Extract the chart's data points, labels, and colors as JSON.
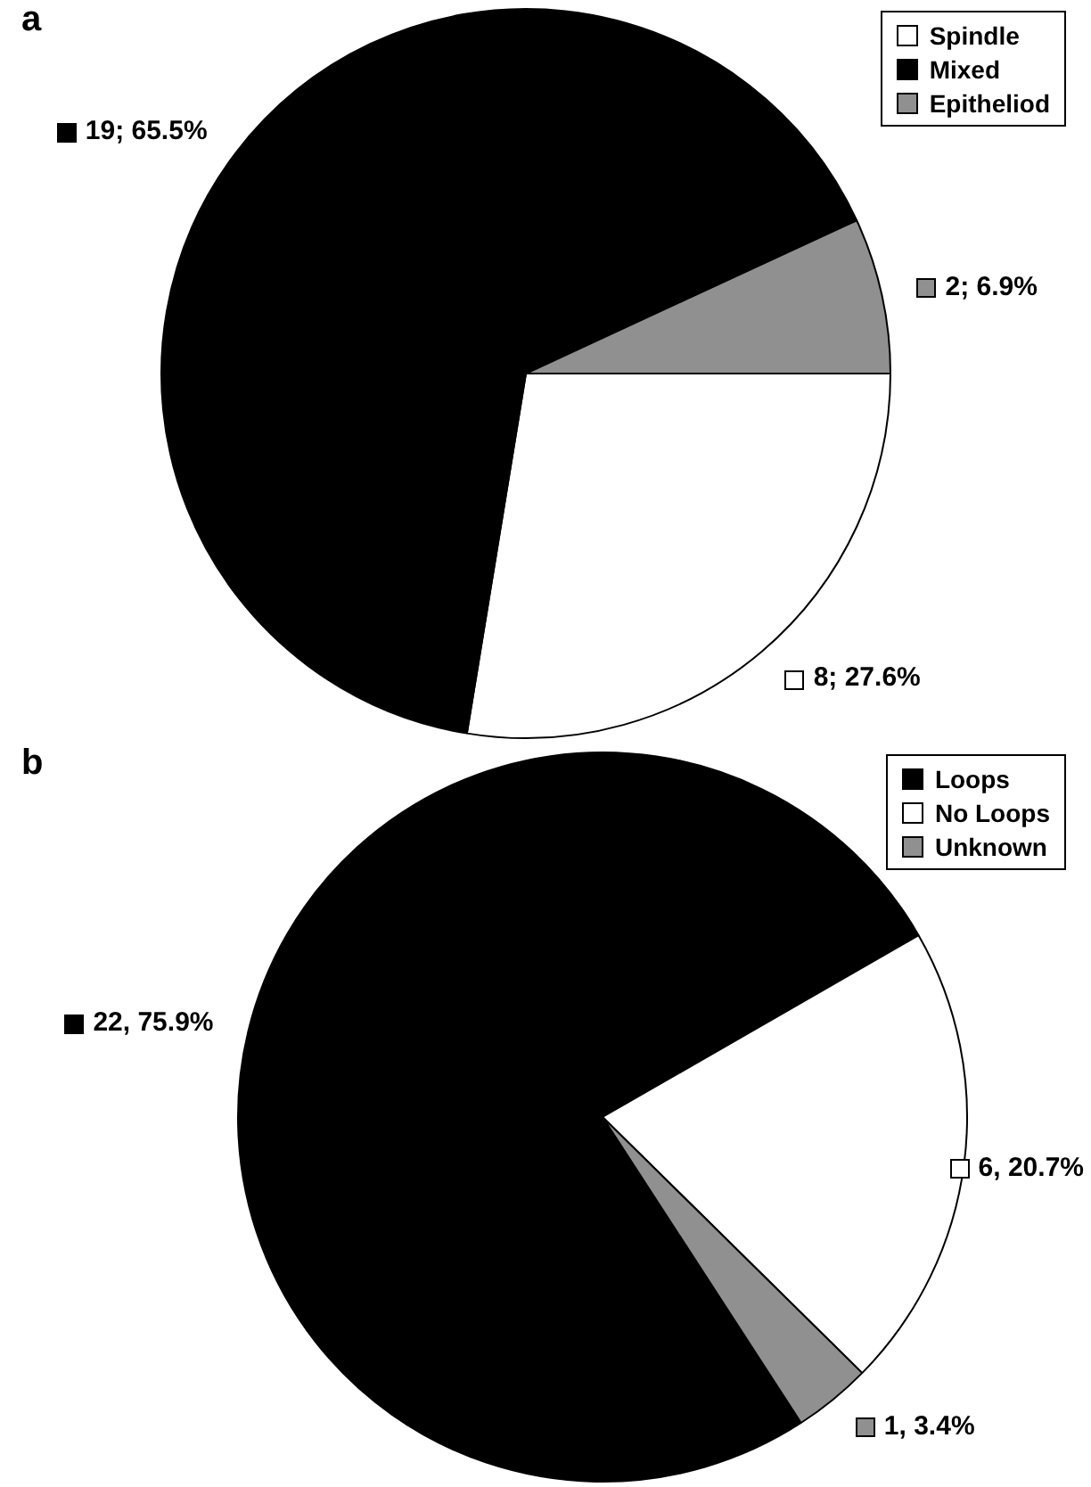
{
  "chart_data": [
    {
      "type": "pie",
      "title": "a",
      "categories": [
        "Spindle",
        "Mixed",
        "Epitheliod"
      ],
      "values": [
        8,
        19,
        2
      ],
      "colors": [
        "#ffffff",
        "#000000",
        "#909090"
      ],
      "value_labels": [
        "8; 27.6%",
        "19; 65.5%",
        "2; 6.9%"
      ],
      "legend": "top right"
    },
    {
      "type": "pie",
      "title": "b",
      "categories": [
        "Loops",
        "No Loops",
        "Unknown"
      ],
      "values": [
        22,
        6,
        1
      ],
      "colors": [
        "#000000",
        "#ffffff",
        "#909090"
      ],
      "value_labels": [
        "22, 75.9%",
        "6, 20.7%",
        "1, 3.4%"
      ],
      "legend": "top right"
    }
  ]
}
